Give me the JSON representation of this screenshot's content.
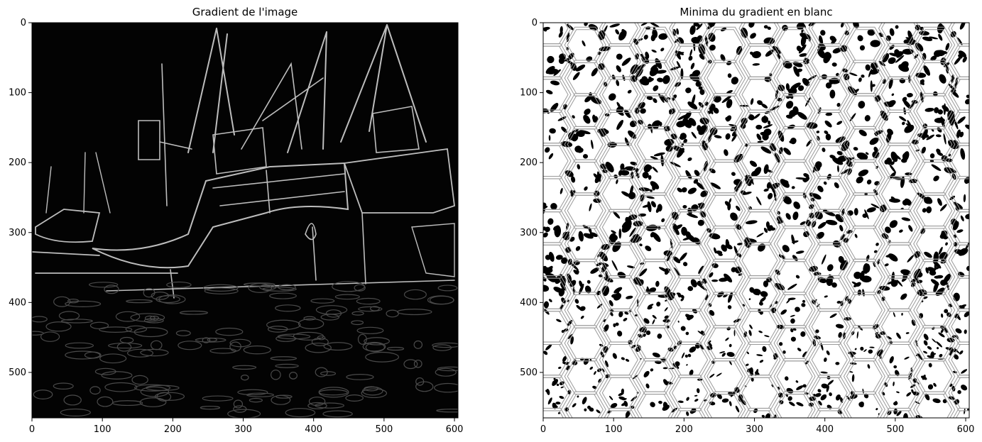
{
  "chart_data": [
    {
      "type": "image",
      "title": "Gradient de l'image",
      "xlabel": "",
      "ylabel": "",
      "xlim": [
        0,
        605
      ],
      "ylim": [
        565,
        0
      ],
      "xticks": [
        0,
        100,
        200,
        300,
        400,
        500,
        600
      ],
      "yticks": [
        0,
        100,
        200,
        300,
        400,
        500
      ],
      "grid": false,
      "legend": "none",
      "colormap": "gray"
    },
    {
      "type": "image",
      "title": "Minima du gradient en blanc",
      "xlabel": "",
      "ylabel": "",
      "xlim": [
        0,
        605
      ],
      "ylim": [
        565,
        0
      ],
      "xticks": [
        0,
        100,
        200,
        300,
        400,
        500,
        600
      ],
      "yticks": [
        0,
        100,
        200,
        300,
        400,
        500
      ],
      "grid": false,
      "legend": "none",
      "colormap": "binary",
      "overlay": "hexagonal-grid"
    }
  ]
}
